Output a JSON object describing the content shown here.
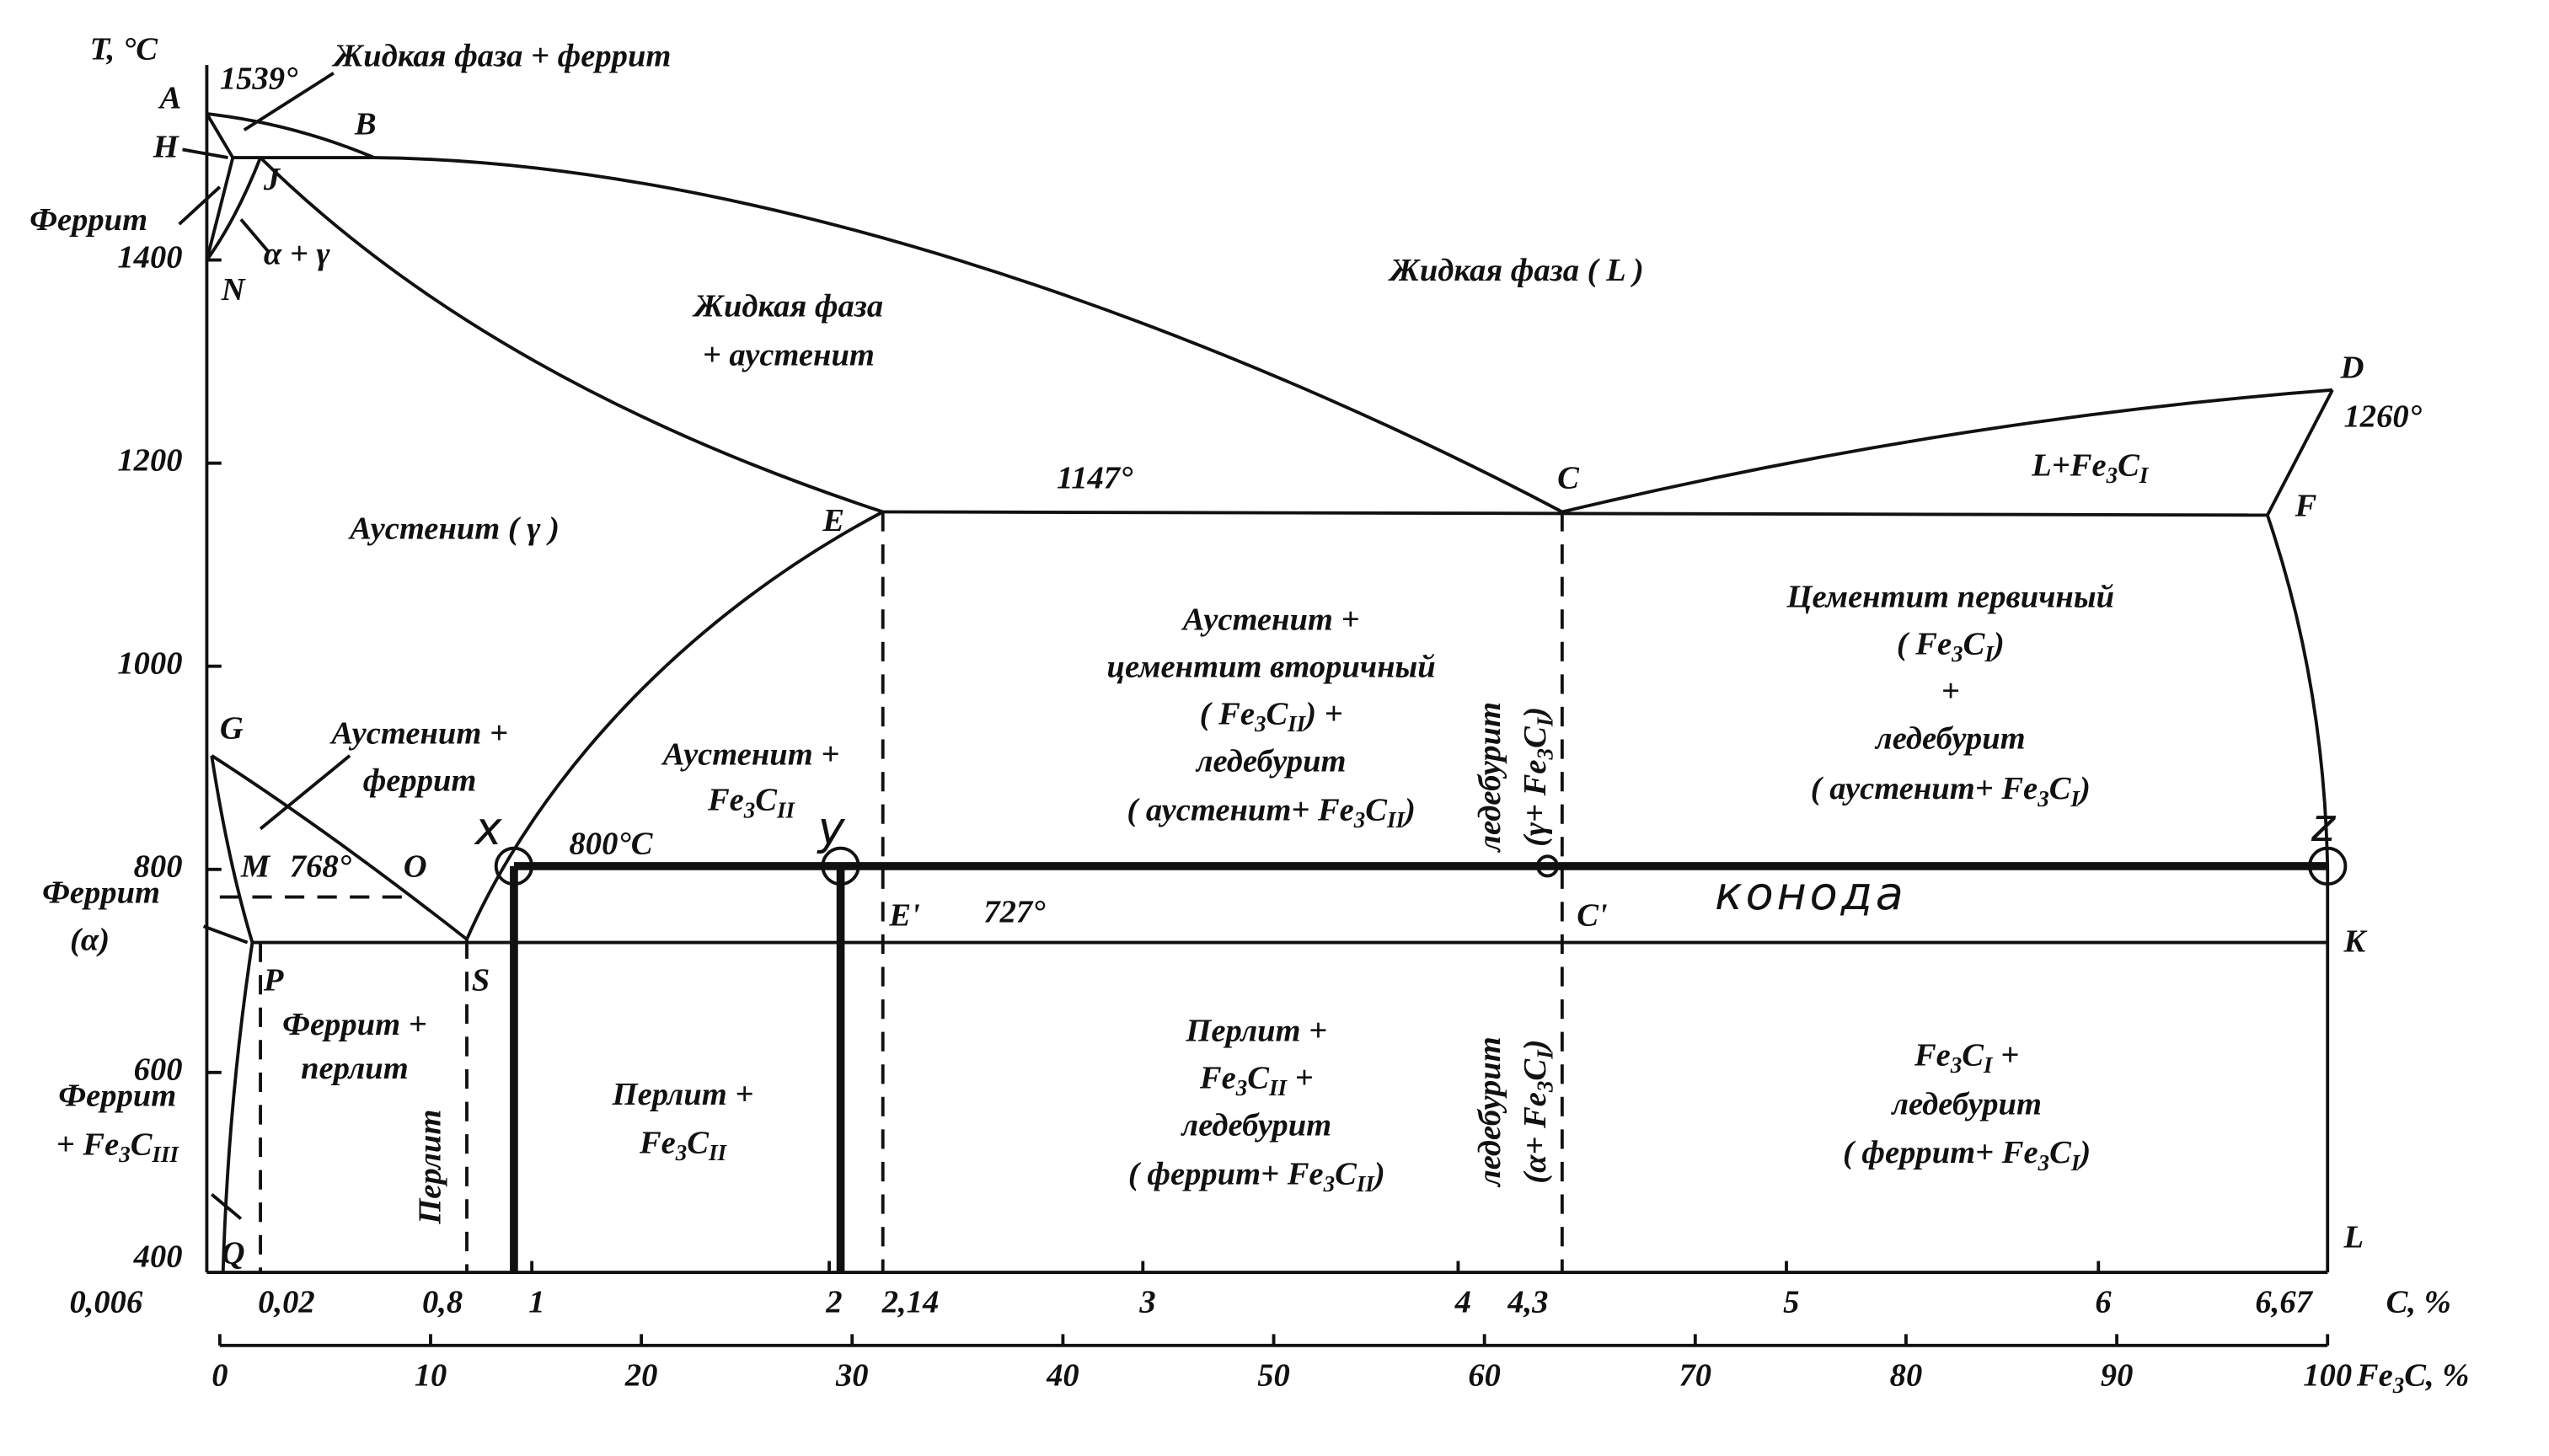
{
  "axes": {
    "temperature": {
      "title": "T, °C",
      "ticks": [
        "1400",
        "1200",
        "1000",
        "800",
        "600",
        "400"
      ]
    },
    "carbon": {
      "title": "C, %",
      "ticks": [
        "0,006",
        "0,02",
        "0,8",
        "1",
        "2",
        "2,14",
        "3",
        "4",
        "4,3",
        "5",
        "6",
        "6,67"
      ]
    },
    "cementite": {
      "title": [
        "Fe",
        "3",
        "C, %"
      ],
      "ticks": [
        "0",
        "10",
        "20",
        "30",
        "40",
        "50",
        "60",
        "70",
        "80",
        "90",
        "100"
      ]
    }
  },
  "points": [
    "A",
    "B",
    "H",
    "J",
    "N",
    "D",
    "C",
    "F",
    "E",
    "G",
    "M",
    "O",
    "P",
    "S",
    "K",
    "Q",
    "L",
    "E'",
    "C'"
  ],
  "temperatures": [
    "1539°",
    "1147°",
    "1260°",
    "768°",
    "727°",
    "800°C"
  ],
  "regions": {
    "liquid_ferrite": [
      [
        "Жидкая фаза + феррит"
      ]
    ],
    "ferrite_top": [
      [
        "Феррит"
      ]
    ],
    "alpha_gamma": [
      [
        "α + γ"
      ]
    ],
    "liquid": [
      [
        "Жидкая фаза ( L )"
      ]
    ],
    "liquid_austenite": [
      [
        "Жидкая фаза"
      ],
      [
        "+ аустенит"
      ]
    ],
    "liquid_cementite": [
      [
        "L+Fe",
        "3",
        "C",
        "I"
      ]
    ],
    "austenite": [
      [
        "Аустенит ( γ )"
      ]
    ],
    "austenite_secondary": [
      [
        "Аустенит +"
      ],
      [
        "цементит вторичный"
      ],
      [
        "( Fe",
        "3",
        "C",
        "II",
        ") +"
      ],
      [
        "ледебурит"
      ],
      [
        "( аустенит+ Fe",
        "3",
        "C",
        "II",
        ")"
      ]
    ],
    "primary_ledeburite": [
      [
        "Цементит первичный"
      ],
      [
        "( Fe",
        "3",
        "C",
        "I",
        ")"
      ],
      [
        "+"
      ],
      [
        "ледебурит"
      ],
      [
        "( аустенит+ Fe",
        "3",
        "C",
        "I",
        ")"
      ]
    ],
    "austenite_ferrite": [
      [
        "Аустенит +"
      ],
      [
        "феррит"
      ]
    ],
    "austenite_cii": [
      [
        "Аустенит +"
      ],
      [
        "Fe",
        "3",
        "C",
        "II"
      ]
    ],
    "ledeburite_high": [
      [
        "ледебурит"
      ],
      [
        "(γ+ Fe",
        "3",
        "C",
        "I",
        ")"
      ]
    ],
    "ferrite_alpha": [
      [
        "Феррит"
      ],
      [
        "(α)"
      ]
    ],
    "ferrite_pearlite": [
      [
        "Феррит +"
      ],
      [
        "перлит"
      ]
    ],
    "pearlite": [
      [
        "Перлит"
      ]
    ],
    "pearlite_cii": [
      [
        "Перлит +"
      ],
      [
        "Fe",
        "3",
        "C",
        "II"
      ]
    ],
    "pearlite_ledeburite": [
      [
        "Перлит +"
      ],
      [
        "Fe",
        "3",
        "C",
        "II",
        "  +"
      ],
      [
        "ледебурит"
      ],
      [
        "( феррит+ Fe",
        "3",
        "C",
        "II",
        ")"
      ]
    ],
    "ledeburite_low": [
      [
        "ледебурит"
      ],
      [
        "(α+ Fe",
        "3",
        "C",
        "I",
        ")"
      ]
    ],
    "cementite_ledeburite": [
      [
        "Fe",
        "3",
        "C",
        "I",
        "  +"
      ],
      [
        "ледебурит"
      ],
      [
        "( феррит+ Fe",
        "3",
        "C",
        "I",
        ")"
      ]
    ],
    "ferrite_ciii": [
      [
        "Феррит"
      ],
      [
        "+ Fe",
        "3",
        "C",
        "III"
      ]
    ]
  },
  "tie_line": {
    "points": [
      "x",
      "y",
      "z"
    ],
    "label": "конода"
  }
}
